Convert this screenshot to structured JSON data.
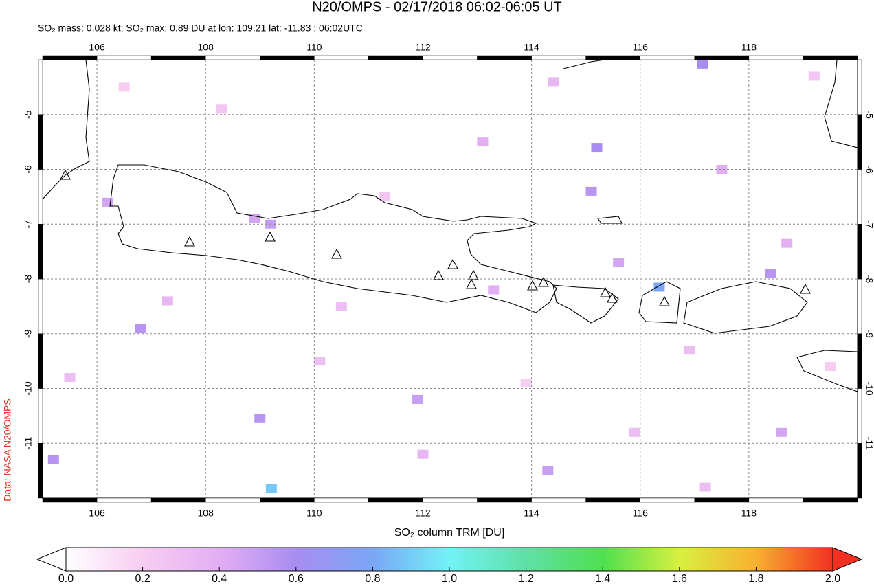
{
  "chart_data": {
    "type": "map",
    "title": "N20/OMPS - 02/17/2018 06:02-06:05 UT",
    "subtitle": "SO₂ mass: 0.028 kt; SO₂ max: 0.89 DU at lon: 109.21 lat: -11.83 ; 06:02UTC",
    "source": "Data: NASA N20/OMPS",
    "xlim": [
      105,
      120
    ],
    "ylim": [
      -12,
      -4
    ],
    "xticks": [
      106,
      108,
      110,
      112,
      114,
      116,
      118
    ],
    "yticks": [
      -5,
      -6,
      -7,
      -8,
      -9,
      -10,
      -11
    ],
    "grid": true,
    "x": [
      109.21,
      116.35,
      115.2,
      117.15,
      106.8,
      109.2,
      105.2,
      109.0,
      111.9,
      115.1,
      118.4,
      106.2,
      108.9,
      113.3,
      114.3,
      117.5,
      118.7,
      113.1,
      115.6,
      105.5,
      107.3,
      110.1,
      112.0,
      115.9,
      117.2,
      118.6,
      114.4,
      116.9,
      119.2,
      108.3,
      111.3,
      106.5,
      119.5,
      110.5,
      113.9
    ],
    "y": [
      -11.83,
      -8.15,
      -5.6,
      -4.08,
      -8.9,
      -7.0,
      -11.3,
      -10.55,
      -10.2,
      -6.4,
      -7.9,
      -6.6,
      -6.9,
      -8.2,
      -11.5,
      -6.0,
      -7.35,
      -5.5,
      -7.7,
      -9.8,
      -8.4,
      -9.5,
      -11.2,
      -10.8,
      -11.8,
      -10.8,
      -4.4,
      -9.3,
      -4.3,
      -4.9,
      -6.5,
      -4.5,
      -9.6,
      -8.5,
      -9.9
    ],
    "values": [
      0.89,
      0.8,
      0.6,
      0.6,
      0.55,
      0.5,
      0.55,
      0.55,
      0.5,
      0.55,
      0.55,
      0.45,
      0.45,
      0.4,
      0.5,
      0.4,
      0.4,
      0.4,
      0.45,
      0.3,
      0.35,
      0.3,
      0.35,
      0.3,
      0.3,
      0.45,
      0.35,
      0.3,
      0.25,
      0.25,
      0.25,
      0.2,
      0.2,
      0.3,
      0.2
    ],
    "colorbar": {
      "label": "SO₂ column TRM [DU]",
      "lim": [
        0,
        2
      ],
      "ticks": [
        {
          "value": 0,
          "label": "0.0"
        },
        {
          "value": 0.2,
          "label": "0.2"
        },
        {
          "value": 0.4,
          "label": "0.4"
        },
        {
          "value": 0.6,
          "label": "0.6"
        },
        {
          "value": 0.8,
          "label": "0.8"
        },
        {
          "value": 1,
          "label": "1.0"
        },
        {
          "value": 1.2,
          "label": "1.2"
        },
        {
          "value": 1.4,
          "label": "1.4"
        },
        {
          "value": 1.6,
          "label": "1.6"
        },
        {
          "value": 1.8,
          "label": "1.8"
        },
        {
          "value": 2,
          "label": "2.0"
        }
      ]
    }
  }
}
